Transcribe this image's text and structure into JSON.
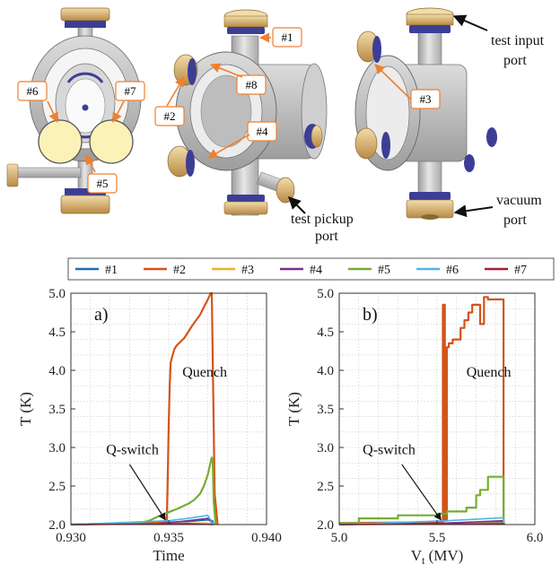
{
  "render_labels": {
    "tags": [
      "#1",
      "#2",
      "#3",
      "#4",
      "#5",
      "#6",
      "#7",
      "#8"
    ],
    "callouts": {
      "test_input_line1": "test input",
      "test_input_line2": "port",
      "test_pickup_line1": "test pickup",
      "test_pickup_line2": "port",
      "vacuum_line1": "vacuum",
      "vacuum_line2": "port"
    }
  },
  "colors": {
    "#1": "#1f6fb4",
    "#2": "#d4541a",
    "#3": "#edae2b",
    "#4": "#7b2f8e",
    "#5": "#76ad30",
    "#6": "#4db6e6",
    "#7": "#a51f3a",
    "tag_border": "#f07f2e",
    "flange_gold": "#d9b57a",
    "port_blue": "#3c3e96",
    "body_gray": "#c9c9c9",
    "sensor_fill": "#fbf2b8"
  },
  "legend": [
    "#1",
    "#2",
    "#3",
    "#4",
    "#5",
    "#6",
    "#7"
  ],
  "chart_data": [
    {
      "type": "line",
      "panel_label": "a)",
      "xlabel": "Time",
      "ylabel": "T (K)",
      "xlim": [
        0.93,
        0.94
      ],
      "ylim": [
        2.0,
        5.0
      ],
      "xticks": [
        "0.930",
        "0.935",
        "0.940"
      ],
      "yticks": [
        "2.0",
        "2.5",
        "3.0",
        "3.5",
        "4.0",
        "4.5",
        "5.0"
      ],
      "grid": true,
      "annotations": [
        "Q-switch",
        "Quench"
      ],
      "series": [
        {
          "name": "#1",
          "x": [
            0.93,
            0.9345,
            0.935,
            0.936,
            0.937,
            0.93725,
            0.9373
          ],
          "y": [
            2.0,
            2.01,
            2.03,
            2.04,
            2.06,
            2.05,
            2.0
          ]
        },
        {
          "name": "#2",
          "x": [
            0.93,
            0.9349,
            0.93495,
            0.935,
            0.93505,
            0.9351,
            0.9352,
            0.9353,
            0.9354,
            0.9356,
            0.9358,
            0.936,
            0.9362,
            0.9364,
            0.9366,
            0.9368,
            0.937,
            0.93715,
            0.9372,
            0.93735,
            0.9375
          ],
          "y": [
            2.0,
            2.03,
            2.6,
            3.3,
            3.8,
            4.1,
            4.2,
            4.28,
            4.32,
            4.37,
            4.42,
            4.5,
            4.58,
            4.65,
            4.72,
            4.82,
            4.92,
            5.0,
            5.0,
            2.4,
            2.0
          ]
        },
        {
          "name": "#3",
          "x": [
            0.93,
            0.937,
            0.93735
          ],
          "y": [
            2.0,
            2.02,
            2.0
          ]
        },
        {
          "name": "#4",
          "x": [
            0.93,
            0.9345,
            0.936,
            0.937,
            0.9373
          ],
          "y": [
            2.0,
            2.01,
            2.05,
            2.08,
            2.0
          ]
        },
        {
          "name": "#5",
          "x": [
            0.93,
            0.9335,
            0.934,
            0.9345,
            0.935,
            0.9355,
            0.936,
            0.9363,
            0.9366,
            0.9368,
            0.937,
            0.93715,
            0.9372,
            0.93725,
            0.9373,
            0.9374
          ],
          "y": [
            2.0,
            2.02,
            2.05,
            2.11,
            2.16,
            2.21,
            2.27,
            2.32,
            2.4,
            2.5,
            2.65,
            2.82,
            2.87,
            2.8,
            2.3,
            2.0
          ]
        },
        {
          "name": "#6",
          "x": [
            0.93,
            0.935,
            0.936,
            0.937,
            0.9373
          ],
          "y": [
            2.0,
            2.05,
            2.08,
            2.12,
            2.0
          ]
        },
        {
          "name": "#7",
          "x": [
            0.93,
            0.936,
            0.9373
          ],
          "y": [
            2.0,
            2.01,
            2.0
          ]
        }
      ]
    },
    {
      "type": "line",
      "panel_label": "b)",
      "xlabel": "Vt (MV)",
      "xlabel_main": "V",
      "xlabel_sub": "t",
      "xlabel_unit": " (MV)",
      "ylabel": "T (K)",
      "xlim": [
        5.0,
        6.0
      ],
      "ylim": [
        2.0,
        5.0
      ],
      "xticks": [
        "5.0",
        "5.5",
        "6.0"
      ],
      "yticks": [
        "2.0",
        "2.5",
        "3.0",
        "3.5",
        "4.0",
        "4.5",
        "5.0"
      ],
      "grid": true,
      "annotations": [
        "Q-switch",
        "Quench"
      ],
      "series": [
        {
          "name": "#1",
          "x": [
            5.0,
            5.55,
            5.84,
            5.845
          ],
          "y": [
            2.0,
            2.02,
            2.04,
            2.0
          ]
        },
        {
          "name": "#2",
          "x": [
            5.0,
            5.52,
            5.53,
            5.53,
            5.54,
            5.54,
            5.55,
            5.55,
            5.56,
            5.56,
            5.58,
            5.58,
            5.62,
            5.62,
            5.64,
            5.64,
            5.66,
            5.66,
            5.68,
            5.68,
            5.72,
            5.72,
            5.74,
            5.74,
            5.76,
            5.76,
            5.84,
            5.84
          ],
          "y": [
            2.02,
            2.03,
            2.03,
            4.85,
            4.85,
            2.05,
            2.05,
            4.3,
            4.3,
            4.35,
            4.35,
            4.4,
            4.4,
            4.55,
            4.55,
            4.65,
            4.65,
            4.75,
            4.75,
            4.85,
            4.85,
            4.6,
            4.6,
            4.95,
            4.95,
            4.92,
            4.92,
            2.0
          ]
        },
        {
          "name": "#3",
          "x": [
            5.0,
            5.84,
            5.845
          ],
          "y": [
            2.01,
            2.02,
            2.0
          ]
        },
        {
          "name": "#4",
          "x": [
            5.0,
            5.55,
            5.84,
            5.845
          ],
          "y": [
            2.0,
            2.02,
            2.05,
            2.0
          ]
        },
        {
          "name": "#5",
          "x": [
            5.0,
            5.1,
            5.1,
            5.3,
            5.3,
            5.5,
            5.5,
            5.55,
            5.55,
            5.65,
            5.65,
            5.7,
            5.7,
            5.72,
            5.72,
            5.76,
            5.76,
            5.84,
            5.84
          ],
          "y": [
            2.02,
            2.02,
            2.08,
            2.08,
            2.12,
            2.12,
            2.14,
            2.14,
            2.17,
            2.17,
            2.22,
            2.22,
            2.38,
            2.38,
            2.45,
            2.45,
            2.62,
            2.62,
            2.0
          ]
        },
        {
          "name": "#6",
          "x": [
            5.0,
            5.55,
            5.84,
            5.845
          ],
          "y": [
            2.0,
            2.05,
            2.09,
            2.0
          ]
        },
        {
          "name": "#7",
          "x": [
            5.0,
            5.84,
            5.845
          ],
          "y": [
            2.0,
            2.01,
            2.0
          ]
        }
      ]
    }
  ]
}
